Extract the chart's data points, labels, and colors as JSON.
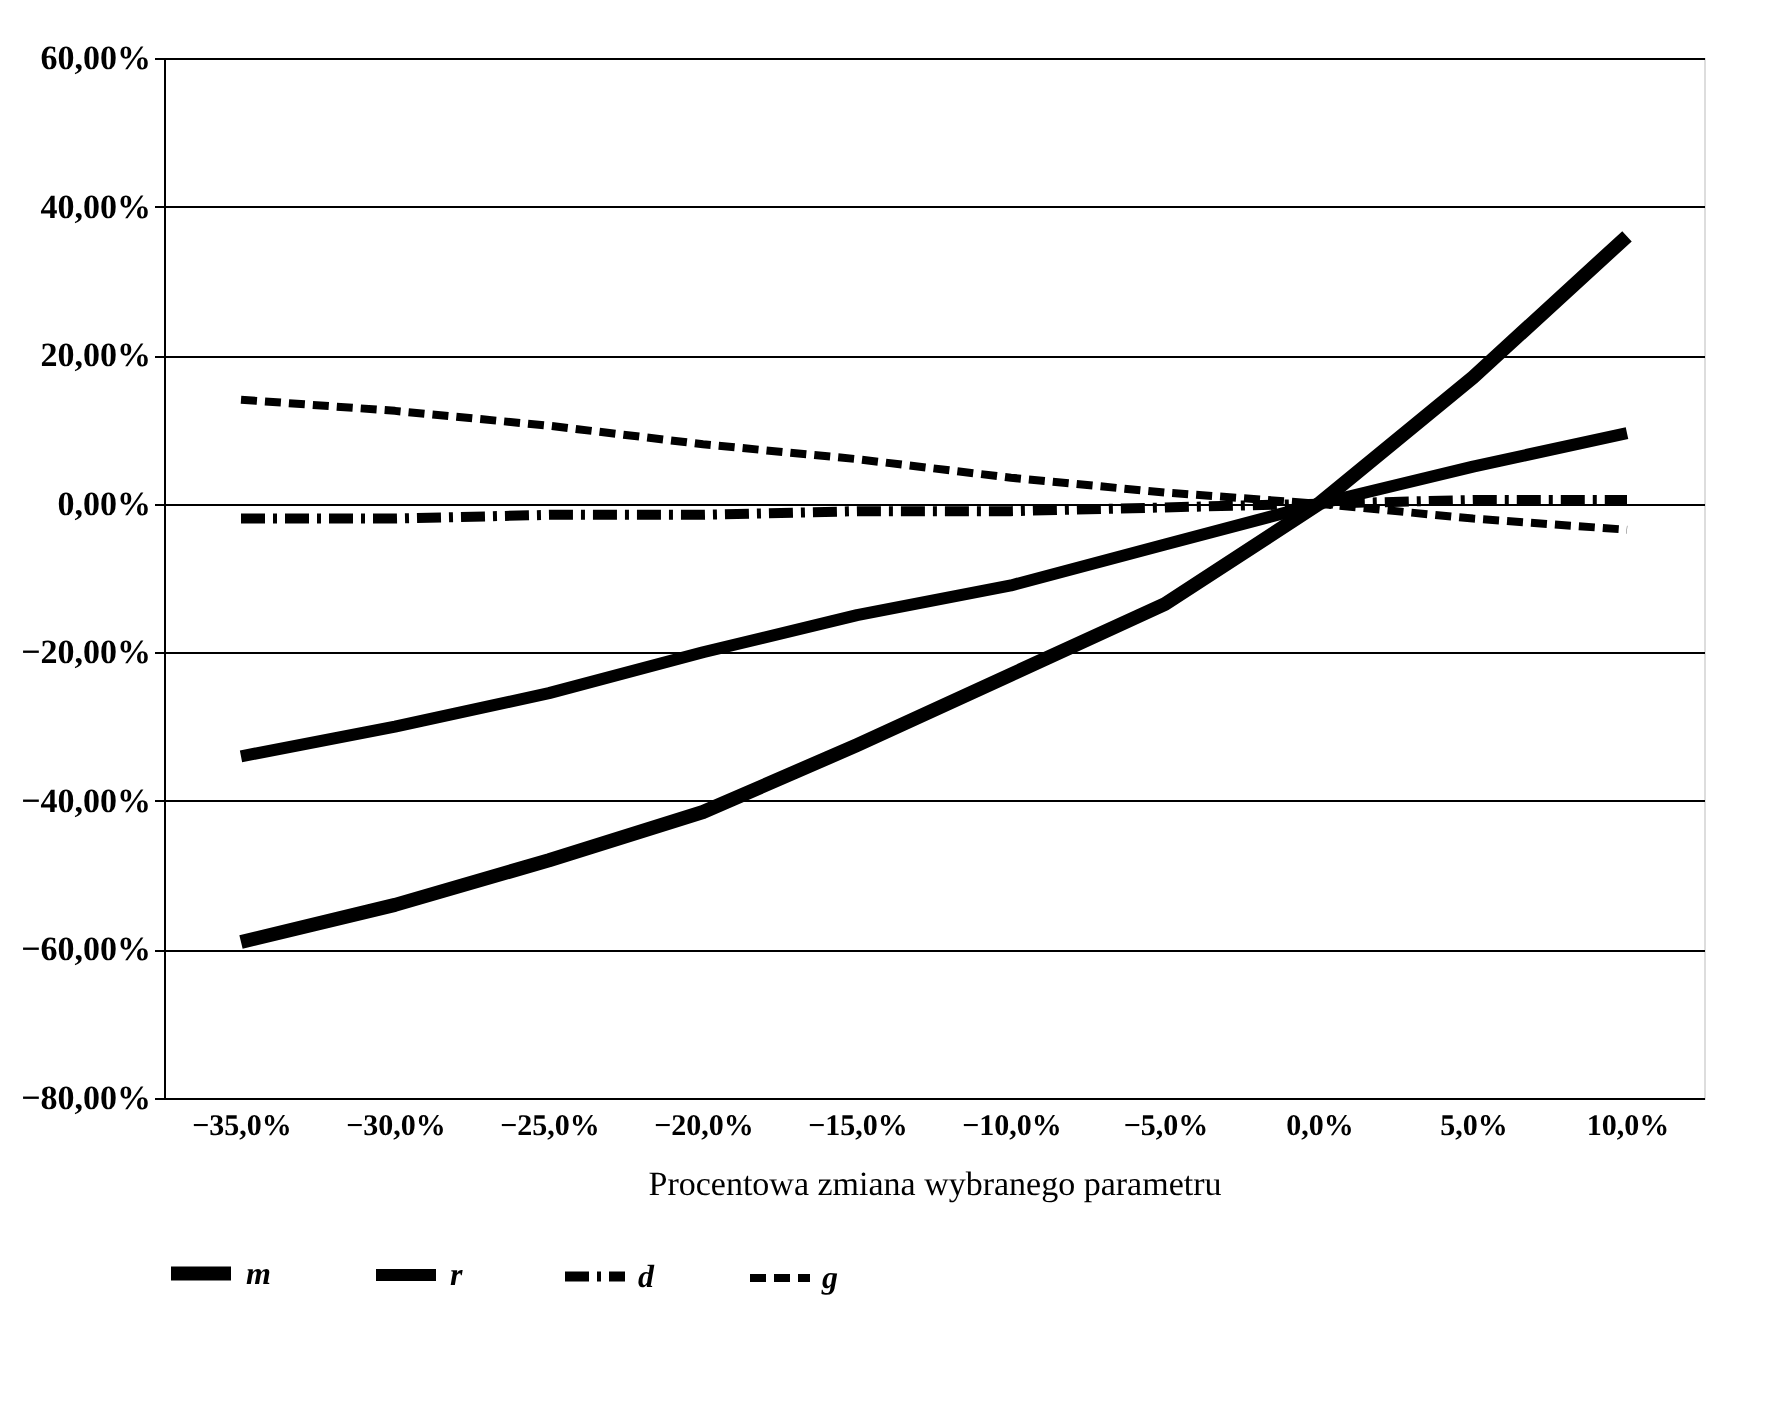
{
  "chart_data": {
    "type": "line",
    "xlabel": "Procentowa zmiana wybranego parametru",
    "categories": [
      "−35,0%",
      "−30,0%",
      "−25,0%",
      "−20,0%",
      "−15,0%",
      "−10,0%",
      "−5,0%",
      "0,0%",
      "5,0%",
      "10,0%"
    ],
    "series": [
      {
        "name": "m",
        "color": "#000000",
        "line_style": "solid",
        "values": [
          -59,
          -54,
          -48,
          -41.5,
          -32.5,
          -23,
          -13.5,
          0,
          17,
          36
        ]
      },
      {
        "name": "r",
        "color": "#000000",
        "line_style": "solid",
        "values": [
          -34,
          -30,
          -25.5,
          -20,
          -15,
          -11,
          -5.5,
          0,
          5,
          9.5
        ]
      },
      {
        "name": "d",
        "color": "#000000",
        "line_style": "dashdot",
        "values": [
          -2,
          -2,
          -1.5,
          -1.5,
          -1,
          -1,
          -0.5,
          0,
          0.5,
          0.5
        ]
      },
      {
        "name": "g",
        "color": "#000000",
        "line_style": "dashed",
        "values": [
          14,
          12.5,
          10.5,
          8,
          6,
          3.5,
          1.5,
          0,
          -2,
          -3.5
        ]
      }
    ],
    "ylim": [
      -80,
      60
    ],
    "yticks": [
      {
        "value": -80,
        "label": "−80,00%"
      },
      {
        "value": -60,
        "label": "−60,00%"
      },
      {
        "value": -40,
        "label": "−40,00%"
      },
      {
        "value": -20,
        "label": "−20,00%"
      },
      {
        "value": 0,
        "label": "0,00%"
      },
      {
        "value": 20,
        "label": "20,00%"
      },
      {
        "value": 40,
        "label": "40,00%"
      },
      {
        "value": 60,
        "label": "60,00%"
      }
    ],
    "grid": "y",
    "legend": "bottom",
    "marker": "none"
  }
}
